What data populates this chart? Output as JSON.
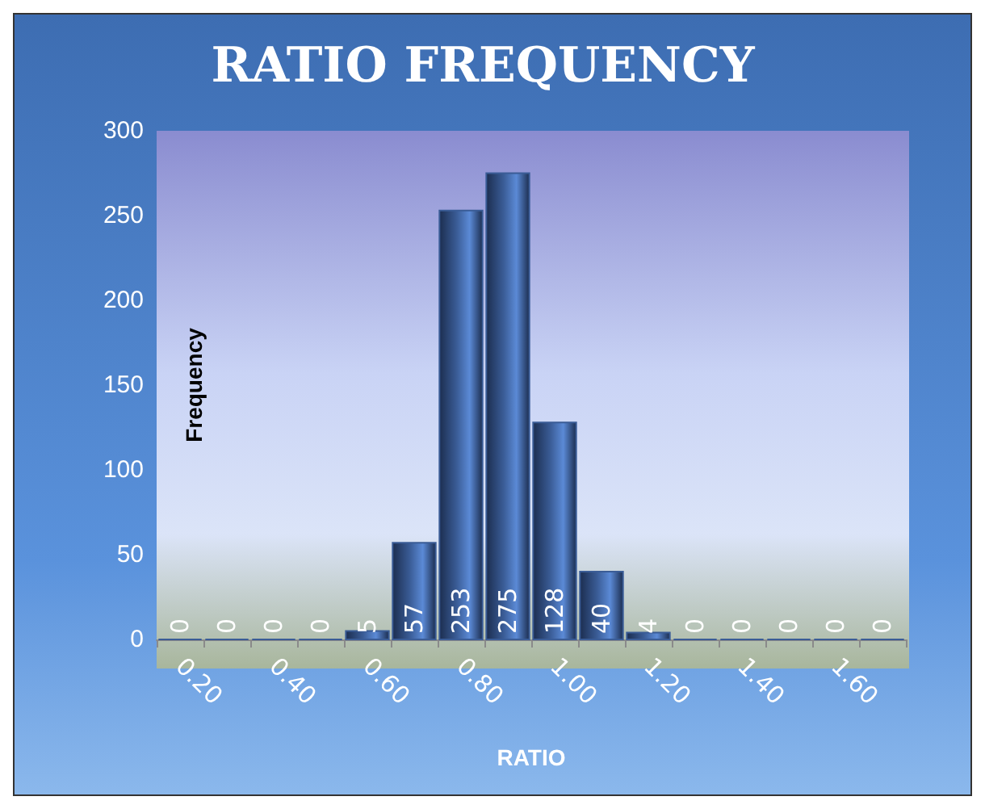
{
  "chart_data": {
    "type": "bar",
    "title": "RATIO FREQUENCY",
    "xlabel": "RATIO",
    "ylabel": "Frequency",
    "categories": [
      "0.20",
      null,
      "0.40",
      null,
      "0.60",
      null,
      "0.80",
      null,
      "1.00",
      null,
      "1.20",
      null,
      "1.40",
      null,
      "1.60",
      null
    ],
    "values": [
      0,
      0,
      0,
      0,
      5,
      57,
      253,
      275,
      128,
      40,
      4,
      0,
      0,
      0,
      0,
      0
    ],
    "color": "#3a5c96",
    "ylim": [
      0,
      300
    ],
    "yticks": [
      0,
      50,
      100,
      150,
      200,
      250,
      300
    ],
    "grid": false,
    "data_labels": true
  }
}
